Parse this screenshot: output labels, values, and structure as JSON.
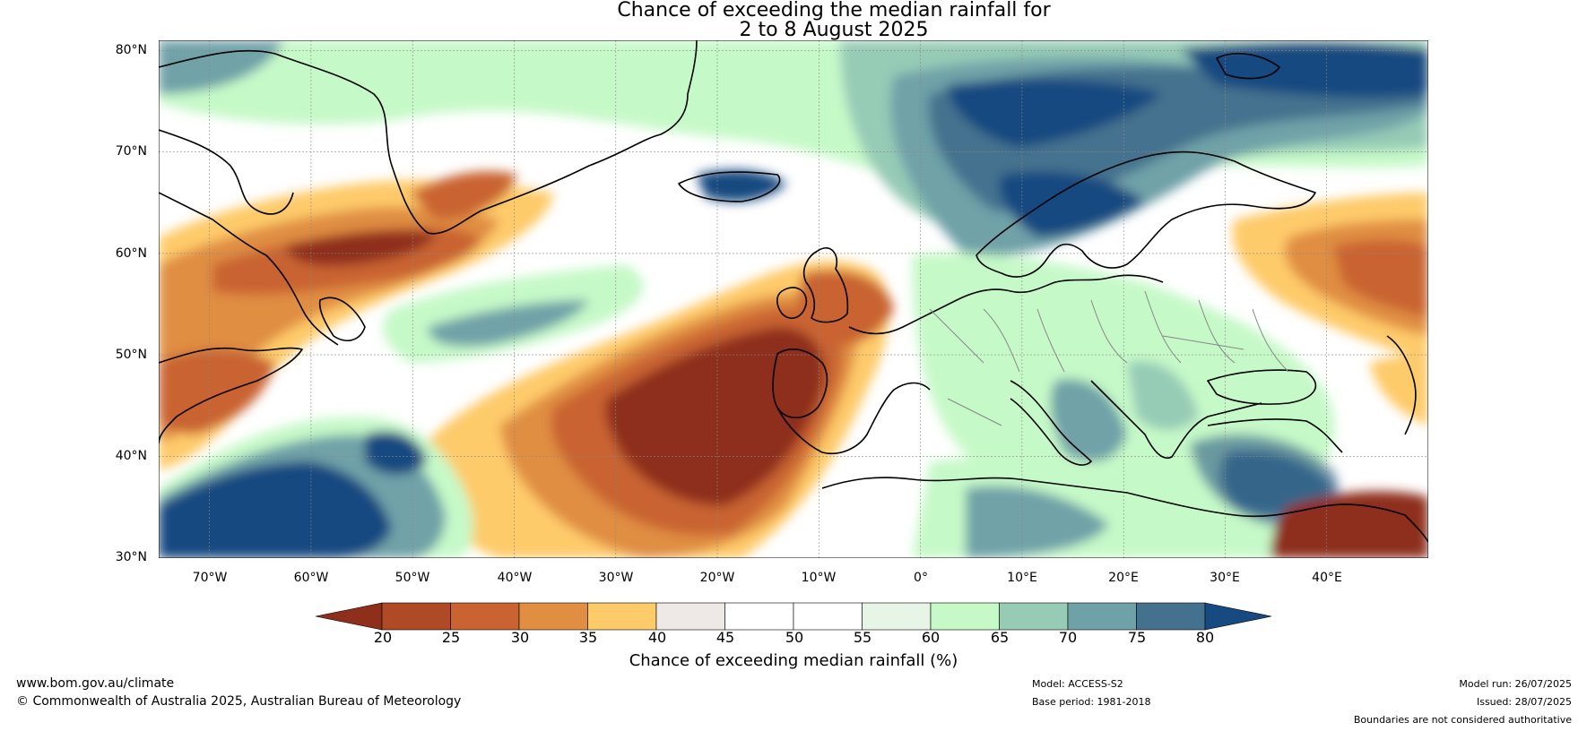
{
  "title": {
    "line1": "Chance of exceeding the median rainfall for",
    "line2": "2 to 8 August 2025"
  },
  "map": {
    "lon_range": [
      -75,
      50
    ],
    "lat_range": [
      30,
      81
    ],
    "lat_labels": [
      {
        "lat": 80,
        "text": "80°N"
      },
      {
        "lat": 70,
        "text": "70°N"
      },
      {
        "lat": 60,
        "text": "60°N"
      },
      {
        "lat": 50,
        "text": "50°N"
      },
      {
        "lat": 40,
        "text": "40°N"
      },
      {
        "lat": 30,
        "text": "30°N"
      }
    ],
    "lon_labels": [
      {
        "lon": -70,
        "text": "70°W"
      },
      {
        "lon": -60,
        "text": "60°W"
      },
      {
        "lon": -50,
        "text": "50°W"
      },
      {
        "lon": -40,
        "text": "40°W"
      },
      {
        "lon": -30,
        "text": "30°W"
      },
      {
        "lon": -20,
        "text": "20°W"
      },
      {
        "lon": -10,
        "text": "10°W"
      },
      {
        "lon": 0,
        "text": "0°"
      },
      {
        "lon": 10,
        "text": "10°E"
      },
      {
        "lon": 20,
        "text": "20°E"
      },
      {
        "lon": 30,
        "text": "30°E"
      },
      {
        "lon": 40,
        "text": "40°E"
      }
    ],
    "gridlines": true
  },
  "colorbar": {
    "label": "Chance of exceeding median rainfall (%)",
    "ticks": [
      "20",
      "25",
      "30",
      "35",
      "40",
      "45",
      "50",
      "55",
      "60",
      "65",
      "70",
      "75",
      "80"
    ],
    "colors": [
      "#8e2e1b",
      "#b04a26",
      "#c96331",
      "#e08e42",
      "#fecb6b",
      "#efe9e6",
      "#ffffff",
      "#ffffff",
      "#e6f5e6",
      "#c6f9c8",
      "#96cbb6",
      "#6fa2a8",
      "#44728e",
      "#174a80"
    ],
    "below_color": "#8e2e1b",
    "above_color": "#174a80"
  },
  "footer": {
    "url": "www.bom.gov.au/climate",
    "copyright": "© Commonwealth of Australia 2025, Australian Bureau of Meteorology",
    "model": "Model: ACCESS-S2",
    "base_period": "Base period: 1981-2018",
    "model_run": "Model run: 26/07/2025",
    "issued": "Issued: 28/07/2025",
    "disclaimer": "Boundaries are not considered authoritative"
  }
}
